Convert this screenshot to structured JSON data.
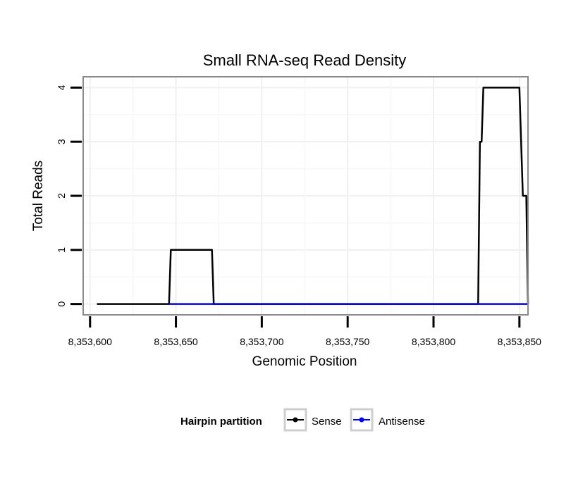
{
  "chart_data": {
    "type": "line",
    "title": "Small RNA-seq Read Density",
    "xlabel": "Genomic Position",
    "ylabel": "Total Reads",
    "xlim": [
      8353596,
      8353855
    ],
    "ylim": [
      -0.2,
      4.2
    ],
    "x_ticks": [
      8353600,
      8353650,
      8353700,
      8353750,
      8353800,
      8353850
    ],
    "x_tick_labels": [
      "8,353,600",
      "8,353,650",
      "8,353,700",
      "8,353,750",
      "8,353,800",
      "8,353,850"
    ],
    "y_ticks": [
      0,
      1,
      2,
      3,
      4
    ],
    "y_tick_labels": [
      "0",
      "1",
      "2",
      "3",
      "4"
    ],
    "grid": true,
    "legend_placement": "bottom",
    "legend_title": "Hairpin partition",
    "series": [
      {
        "name": "Sense",
        "color": "#000000",
        "points": [
          [
            8353604,
            0
          ],
          [
            8353646,
            0
          ],
          [
            8353647,
            1
          ],
          [
            8353671,
            1
          ],
          [
            8353672,
            0
          ],
          [
            8353826,
            0
          ],
          [
            8353827,
            3
          ],
          [
            8353828,
            3
          ],
          [
            8353829,
            4
          ],
          [
            8353850,
            4
          ],
          [
            8353852,
            2
          ],
          [
            8353854,
            2
          ],
          [
            8353855,
            0
          ]
        ]
      },
      {
        "name": "Antisense",
        "color": "#0000ff",
        "points": [
          [
            8353646,
            0
          ],
          [
            8353672,
            0
          ],
          [
            8353826,
            0
          ],
          [
            8353855,
            0
          ]
        ]
      }
    ]
  }
}
